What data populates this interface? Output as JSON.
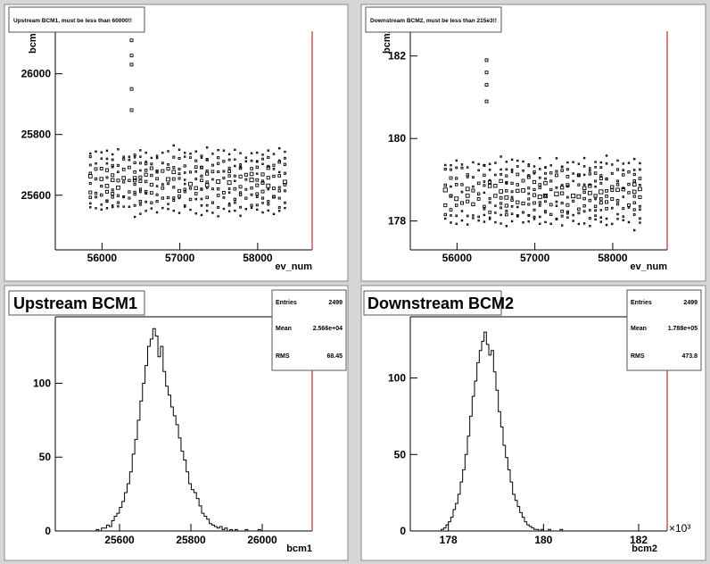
{
  "chart_data": [
    {
      "type": "scatter",
      "title": "Upstream BCM1, must be less than 60000!!",
      "xlabel": "ev_num",
      "ylabel": "bcm1",
      "xlim": [
        55400,
        58700
      ],
      "ylim": [
        25420,
        26140
      ],
      "xticks": [
        56000,
        57000,
        58000
      ],
      "xticklabels": [
        "56000",
        "57000",
        "58000"
      ],
      "yticks": [
        25600,
        25800,
        26000
      ],
      "yticklabels": [
        "25600",
        "25800",
        "26000"
      ],
      "x_range_data": [
        55850,
        58350
      ],
      "band": {
        "center": 25660,
        "spread": 90
      },
      "spikes": [
        [
          56380,
          26110
        ],
        [
          56380,
          26060
        ],
        [
          56380,
          26030
        ],
        [
          56380,
          25950
        ],
        [
          56380,
          25880
        ]
      ]
    },
    {
      "type": "scatter",
      "title": "Downstream BCM2, must be less than 215e3!!",
      "xlabel": "ev_num",
      "ylabel": "bcm2",
      "xlim": [
        55400,
        58700
      ],
      "ylim": [
        177.3,
        182.6
      ],
      "xticks": [
        56000,
        57000,
        58000
      ],
      "xticklabels": [
        "56000",
        "57000",
        "58000"
      ],
      "yticks": [
        178,
        180,
        182
      ],
      "yticklabels": [
        "178",
        "180",
        "182"
      ],
      "x_range_data": [
        55850,
        58350
      ],
      "band": {
        "center": 178.8,
        "spread": 0.7
      },
      "spikes": [
        [
          56380,
          181.9
        ],
        [
          56380,
          181.6
        ],
        [
          56380,
          181.3
        ],
        [
          56380,
          180.9
        ]
      ]
    },
    {
      "type": "bar",
      "title": "Upstream BCM1",
      "xlabel": "bcm1",
      "ylabel": "",
      "xlim": [
        25420,
        26140
      ],
      "ylim": [
        0,
        145
      ],
      "xticks": [
        25600,
        25800,
        26000
      ],
      "xticklabels": [
        "25600",
        "25800",
        "26000"
      ],
      "yticks": [
        0,
        50,
        100
      ],
      "yticklabels": [
        "0",
        "50",
        "100"
      ],
      "stats": {
        "entries": "2499",
        "mean": "2.566e+04",
        "rms": "68.45"
      },
      "bins_start": 25470,
      "bin_width": 7.2,
      "values": [
        0,
        0,
        0,
        0,
        0,
        0,
        0,
        0,
        0,
        1,
        0,
        2,
        2,
        4,
        3,
        7,
        10,
        12,
        16,
        20,
        26,
        32,
        40,
        52,
        62,
        75,
        88,
        100,
        112,
        125,
        130,
        137,
        132,
        118,
        125,
        108,
        98,
        92,
        84,
        78,
        72,
        63,
        54,
        48,
        40,
        32,
        28,
        26,
        22,
        17,
        12,
        10,
        8,
        5,
        4,
        3,
        2,
        3,
        1,
        2,
        0,
        1,
        0,
        1,
        0,
        0,
        0,
        1,
        0,
        0,
        0,
        0,
        1,
        0,
        0,
        0,
        0,
        0,
        0,
        0
      ]
    },
    {
      "type": "bar",
      "title": "Downstream BCM2",
      "xlabel": "bcm2",
      "ylabel": "",
      "x_multiplier_label": "×10³",
      "xlim": [
        177.2,
        182.6
      ],
      "ylim": [
        0,
        140
      ],
      "xticks": [
        178,
        180,
        182
      ],
      "xticklabels": [
        "178",
        "180",
        "182"
      ],
      "yticks": [
        0,
        50,
        100
      ],
      "yticklabels": [
        "0",
        "50",
        "100"
      ],
      "stats": {
        "entries": "2499",
        "mean": "1.788e+05",
        "rms": "473.8"
      },
      "bins_start": 177.8,
      "bin_width": 0.05,
      "values": [
        0,
        1,
        2,
        4,
        6,
        9,
        14,
        18,
        24,
        32,
        40,
        50,
        62,
        75,
        88,
        98,
        110,
        118,
        124,
        130,
        122,
        115,
        118,
        104,
        92,
        78,
        68,
        56,
        48,
        40,
        32,
        24,
        20,
        16,
        12,
        9,
        6,
        4,
        3,
        2,
        1,
        1,
        0,
        1,
        0,
        0,
        1,
        0,
        0,
        0,
        0,
        1,
        0,
        0,
        0,
        0,
        0,
        0,
        0,
        0,
        0,
        0,
        0
      ]
    }
  ],
  "stat_labels": {
    "entries": "Entries",
    "mean": "Mean",
    "rms": "RMS"
  }
}
